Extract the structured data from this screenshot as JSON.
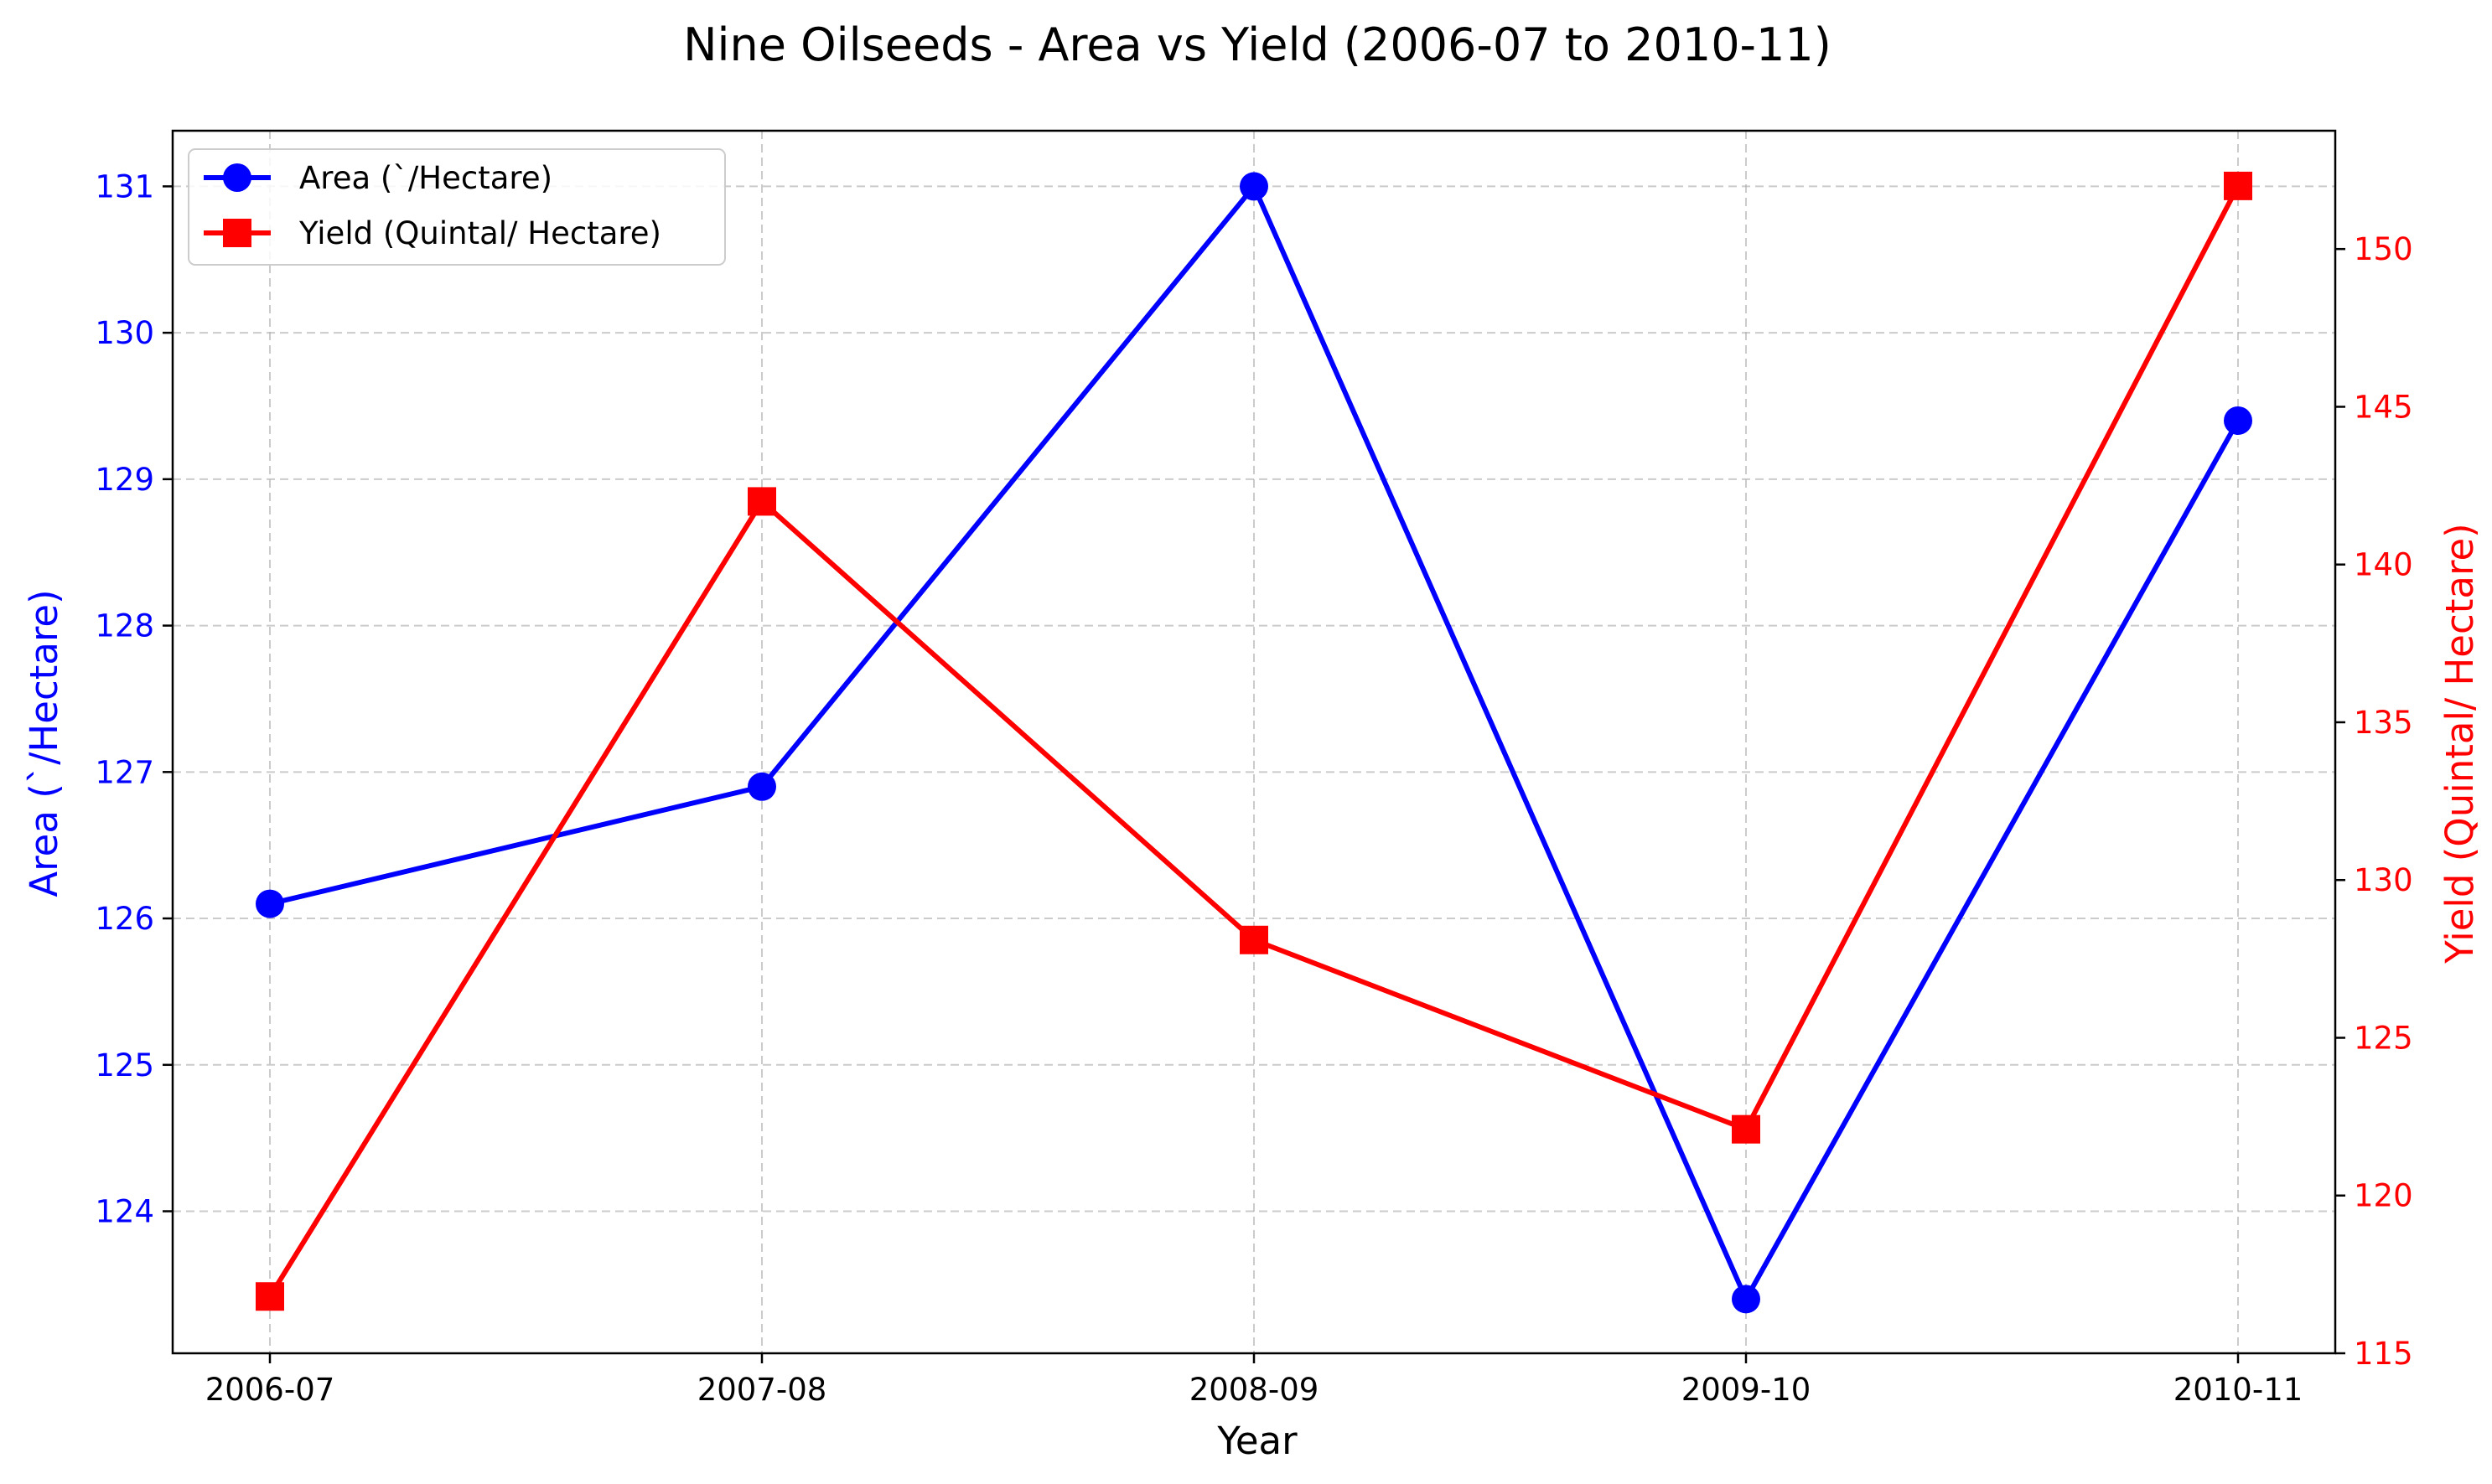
{
  "chart_data": {
    "type": "line",
    "title": "Nine Oilseeds - Area vs Yield (2006-07 to 2010-11)",
    "xlabel": "Year",
    "categories": [
      "2006-07",
      "2007-08",
      "2008-09",
      "2009-10",
      "2010-11"
    ],
    "grid": true,
    "legend_position": "top-left",
    "series": [
      {
        "name": "Area (`/Hectare)",
        "axis": "left",
        "color": "#0000ff",
        "marker": "circle",
        "values": [
          126.1,
          126.9,
          131.0,
          123.4,
          129.4
        ]
      },
      {
        "name": "Yield (Quintal/ Hectare)",
        "axis": "right",
        "color": "#ff0000",
        "marker": "square",
        "values": [
          116.8,
          142.0,
          128.1,
          122.1,
          152.0
        ]
      }
    ],
    "y_left": {
      "label": "Area (`/Hectare)",
      "color": "#0000ff",
      "range": [
        123.03,
        131.38
      ],
      "ticks": [
        124,
        125,
        126,
        127,
        128,
        129,
        130,
        131
      ]
    },
    "y_right": {
      "label": "Yield (Quintal/ Hectare)",
      "color": "#ff0000",
      "range": [
        115.0,
        153.75
      ],
      "ticks": [
        115,
        120,
        125,
        130,
        135,
        140,
        145,
        150
      ]
    }
  }
}
